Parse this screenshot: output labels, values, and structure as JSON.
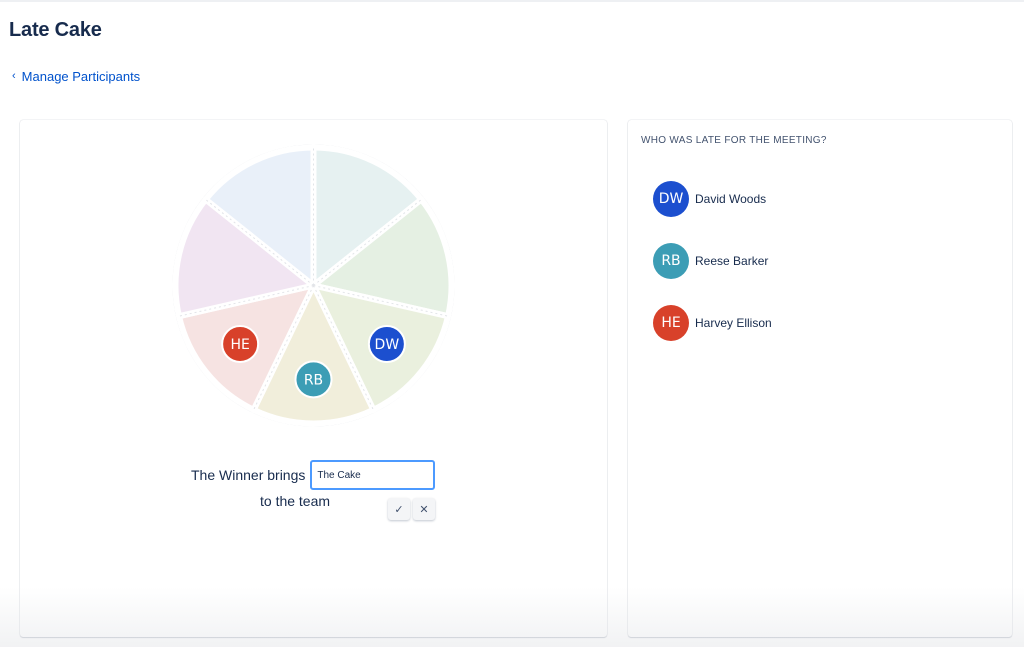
{
  "page": {
    "title": "Late Cake",
    "back_link": "Manage Participants"
  },
  "wheel": {
    "segment_colors": [
      "#e6f1f1",
      "#e5f0e3",
      "#eaf0de",
      "#f1eedb",
      "#f6e3e2",
      "#f1e5f2",
      "#e9f0f9"
    ],
    "badges": [
      {
        "initials": "DW",
        "color": "#1c4fcf",
        "segment": 2
      },
      {
        "initials": "RB",
        "color": "#3c9db5",
        "segment": 3
      },
      {
        "initials": "HE",
        "color": "#d8412a",
        "segment": 4
      }
    ]
  },
  "winner": {
    "prefix": "The Winner brings",
    "input_value": "The Cake",
    "suffix": "to the team",
    "confirm_icon": "check-icon",
    "cancel_icon": "close-icon"
  },
  "sidebar": {
    "heading": "WHO WAS LATE FOR THE MEETING?",
    "participants": [
      {
        "initials": "DW",
        "name": "David Woods",
        "color": "#1c4fcf"
      },
      {
        "initials": "RB",
        "name": "Reese Barker",
        "color": "#3c9db5"
      },
      {
        "initials": "HE",
        "name": "Harvey Ellison",
        "color": "#d8412a"
      }
    ]
  }
}
